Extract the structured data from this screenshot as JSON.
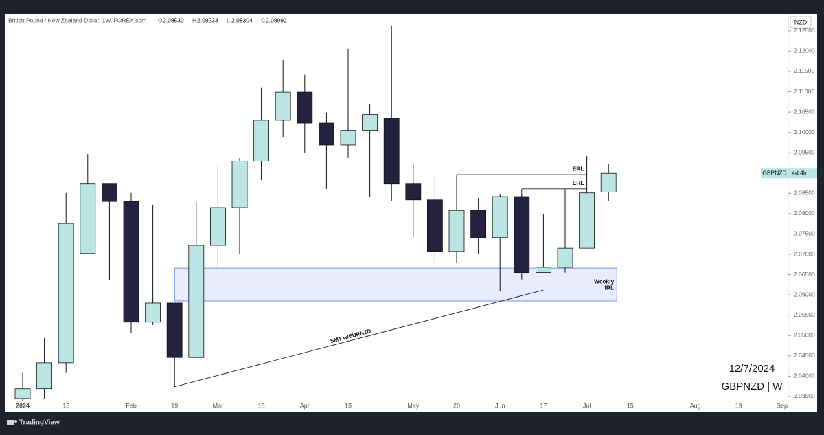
{
  "header": {
    "title": "British Pound / New Zealand Dollar, 1W, FOREX.com",
    "ohlc": [
      {
        "label": "O",
        "value": "2.08530"
      },
      {
        "label": "H",
        "value": "2.09233"
      },
      {
        "label": "L",
        "value": "2.08304"
      },
      {
        "label": "C",
        "value": "2.08992"
      }
    ]
  },
  "currency_tag": "NZD",
  "price_tag": {
    "symbol": "GBPNZD",
    "countdown": "4d 4h"
  },
  "watermark": {
    "date": "12/7/2024",
    "symbol": "GBPNZD | W"
  },
  "footer": {
    "brand": "TradingView"
  },
  "chart_data": {
    "type": "candlestick",
    "categories": [
      "2024",
      null,
      "15",
      null,
      null,
      "Feb",
      null,
      "19",
      null,
      "Mar",
      null,
      "18",
      null,
      "Apr",
      null,
      "15",
      null,
      null,
      "May",
      null,
      "20",
      null,
      "Jun",
      null,
      "17",
      null,
      "Jul",
      null,
      "15",
      null,
      null,
      "Aug",
      null,
      "19",
      null,
      "Sep"
    ],
    "open": [
      2.0345,
      2.0369,
      2.0433,
      2.0702,
      2.0873,
      2.083,
      2.0533,
      2.058,
      2.0446,
      2.0722,
      2.0815,
      2.0929,
      2.103,
      2.1099,
      2.1023,
      2.0969,
      2.1005,
      2.1035,
      2.0873,
      2.0834,
      2.0707,
      2.0808,
      2.0741,
      2.0842,
      2.0655,
      2.0668,
      2.0715,
      2.0853,
      null,
      null,
      null,
      null,
      null,
      null,
      null,
      null
    ],
    "high": [
      2.0408,
      2.0494,
      2.0851,
      2.0947,
      2.0873,
      2.0851,
      2.082,
      2.058,
      2.0829,
      2.092,
      2.0937,
      2.111,
      2.1177,
      2.1142,
      2.1049,
      2.1206,
      2.1069,
      2.1262,
      2.0924,
      2.0893,
      2.0896,
      2.0839,
      2.0847,
      2.0847,
      2.08,
      2.0861,
      2.0942,
      2.09233,
      null,
      null,
      null,
      null,
      null,
      null,
      null,
      null
    ],
    "low": [
      2.034,
      2.0345,
      2.0408,
      2.0702,
      2.0636,
      2.0506,
      2.0526,
      2.0374,
      2.0446,
      2.0666,
      2.07,
      2.0883,
      2.0988,
      2.0949,
      2.0861,
      2.0937,
      2.0841,
      2.0832,
      2.0742,
      2.0678,
      2.068,
      2.07,
      2.0609,
      2.0638,
      2.0655,
      2.0655,
      2.0715,
      2.08304,
      null,
      null,
      null,
      null,
      null,
      null,
      null,
      null
    ],
    "close": [
      2.0369,
      2.0433,
      2.0776,
      2.0873,
      2.083,
      2.0533,
      2.058,
      2.0446,
      2.0722,
      2.0815,
      2.0929,
      2.103,
      2.1099,
      2.1023,
      2.0969,
      2.1005,
      2.1044,
      2.0873,
      2.0834,
      2.0707,
      2.0808,
      2.0741,
      2.0842,
      2.0655,
      2.0668,
      2.0715,
      2.0851,
      2.08992,
      null,
      null,
      null,
      null,
      null,
      null,
      null,
      null
    ],
    "up_color": "#b9e5e3",
    "down_color": "#24233f",
    "ylim": [
      2.0311,
      2.1292
    ],
    "yticks": [
      {
        "value": 2.035,
        "label": "2.03500"
      },
      {
        "value": 2.04,
        "label": "2.04000"
      },
      {
        "value": 2.045,
        "label": "2.04500"
      },
      {
        "value": 2.05,
        "label": "2.05000"
      },
      {
        "value": 2.055,
        "label": "2.05500"
      },
      {
        "value": 2.06,
        "label": "2.06000"
      },
      {
        "value": 2.065,
        "label": "2.06500"
      },
      {
        "value": 2.07,
        "label": "2.07000"
      },
      {
        "value": 2.075,
        "label": "2.07500"
      },
      {
        "value": 2.08,
        "label": "2.08000"
      },
      {
        "value": 2.085,
        "label": "2.08500"
      },
      {
        "value": 2.09,
        "label": "2.09000"
      },
      {
        "value": 2.095,
        "label": "2.09500"
      },
      {
        "value": 2.1,
        "label": "2.10000"
      },
      {
        "value": 2.105,
        "label": "2.10500"
      },
      {
        "value": 2.11,
        "label": "2.11000"
      },
      {
        "value": 2.115,
        "label": "2.11500"
      },
      {
        "value": 2.12,
        "label": "2.12000"
      },
      {
        "value": 2.125,
        "label": "2.12500"
      }
    ],
    "levels": [
      {
        "text": "ERL",
        "value": 2.0896
      },
      {
        "text": "ERL",
        "value": 2.0861
      }
    ],
    "zone": {
      "lines": [
        "Weekly",
        "IRL"
      ],
      "top": 2.0666,
      "bottom": 2.0585
    },
    "trendline": {
      "text": "SMT w/EURNZD",
      "from": 2.0374,
      "to": 2.0612
    }
  }
}
